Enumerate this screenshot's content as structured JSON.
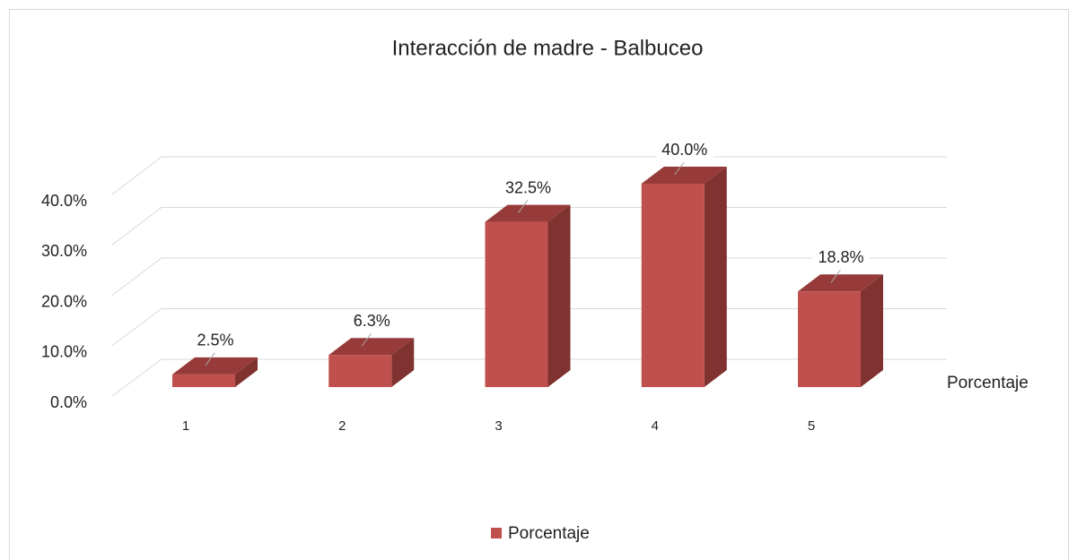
{
  "chart_data": {
    "type": "bar3d",
    "title": "Interacción de madre - Balbuceo",
    "categories": [
      "1",
      "2",
      "3",
      "4",
      "5"
    ],
    "series": [
      {
        "name": "Porcentaje",
        "color": "#c0504d",
        "values": [
          2.5,
          6.3,
          32.5,
          40.0,
          18.8
        ],
        "value_labels": [
          "2.5%",
          "6.3%",
          "32.5%",
          "40.0%",
          "18.8%"
        ]
      }
    ],
    "ylim": [
      0,
      40
    ],
    "yticks": [
      {
        "value": 0,
        "label": "0.0%"
      },
      {
        "value": 10,
        "label": "10.0%"
      },
      {
        "value": 20,
        "label": "20.0%"
      },
      {
        "value": 30,
        "label": "30.0%"
      },
      {
        "value": 40,
        "label": "40.0%"
      }
    ],
    "grid": true,
    "legend": "bottom"
  }
}
